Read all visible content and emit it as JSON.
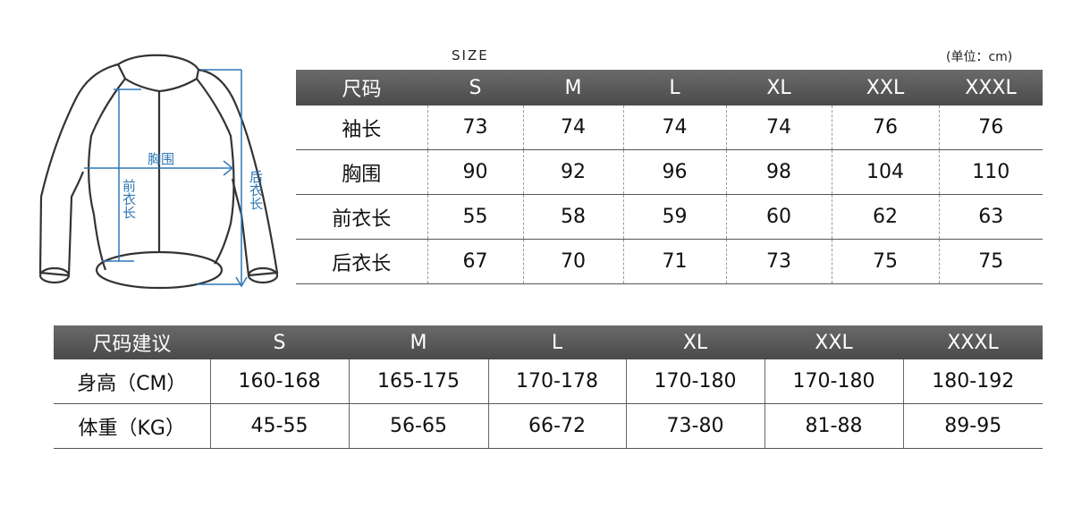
{
  "diagram": {
    "chest": "胸围",
    "front_length": "前衣长",
    "back_length": "后衣长",
    "line_color": "#2f77b5"
  },
  "size_label": "SIZE",
  "unit": "(单位：cm)",
  "measure_table": {
    "headers": [
      "尺码",
      "S",
      "M",
      "L",
      "XL",
      "XXL",
      "XXXL"
    ],
    "rows": [
      [
        "袖长",
        "73",
        "74",
        "74",
        "74",
        "76",
        "76"
      ],
      [
        "胸围",
        "90",
        "92",
        "96",
        "98",
        "104",
        "110"
      ],
      [
        "前衣长",
        "55",
        "58",
        "59",
        "60",
        "62",
        "63"
      ],
      [
        "后衣长",
        "67",
        "70",
        "71",
        "73",
        "75",
        "75"
      ]
    ]
  },
  "advice_table": {
    "headers": [
      "尺码建议",
      "S",
      "M",
      "L",
      "XL",
      "XXL",
      "XXXL"
    ],
    "rows": [
      [
        "身高（CM）",
        "160-168",
        "165-175",
        "170-178",
        "170-180",
        "170-180",
        "180-192"
      ],
      [
        "体重（KG）",
        "45-55",
        "56-65",
        "66-72",
        "73-80",
        "81-88",
        "89-95"
      ]
    ]
  }
}
